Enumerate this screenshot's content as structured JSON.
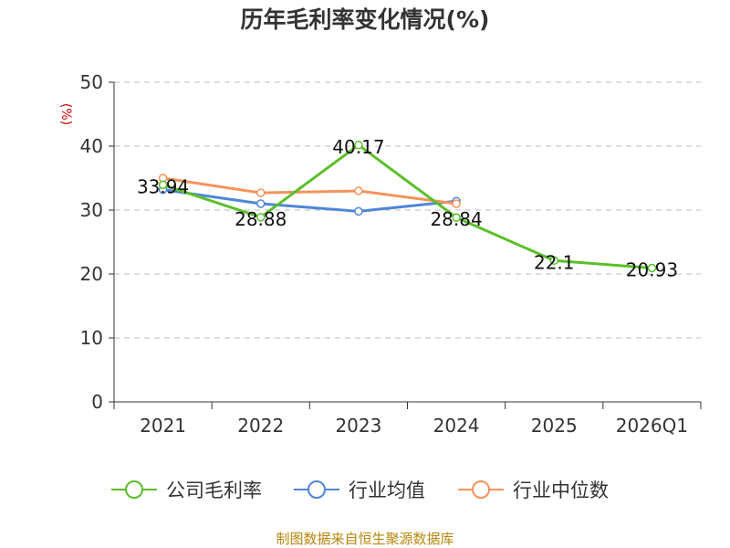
{
  "chart_data": {
    "type": "line",
    "title": "历年毛利率变化情况(%)",
    "ylabel": "(%)",
    "xlabel": "",
    "categories": [
      "2021",
      "2022",
      "2023",
      "2024",
      "2025",
      "2026Q1"
    ],
    "ylim": [
      0,
      50
    ],
    "yticks": [
      0,
      10,
      20,
      30,
      40,
      50
    ],
    "grid": "horizontal dashed",
    "legend_position": "bottom",
    "series": [
      {
        "name": "公司毛利率",
        "color": "#5bbf2a",
        "values": [
          33.94,
          28.88,
          40.17,
          28.84,
          22.1,
          20.93
        ],
        "labels": [
          "33.94",
          "28.88",
          "40.17",
          "28.84",
          "22.1",
          "20.93"
        ]
      },
      {
        "name": "行业均值",
        "color": "#4e86d8",
        "values": [
          33.2,
          31.0,
          29.8,
          31.4,
          null,
          null
        ],
        "labels": []
      },
      {
        "name": "行业中位数",
        "color": "#f4935a",
        "values": [
          35.0,
          32.7,
          33.0,
          31.0,
          null,
          null
        ],
        "labels": []
      }
    ]
  },
  "source_text": "制图数据来自恒生聚源数据库"
}
